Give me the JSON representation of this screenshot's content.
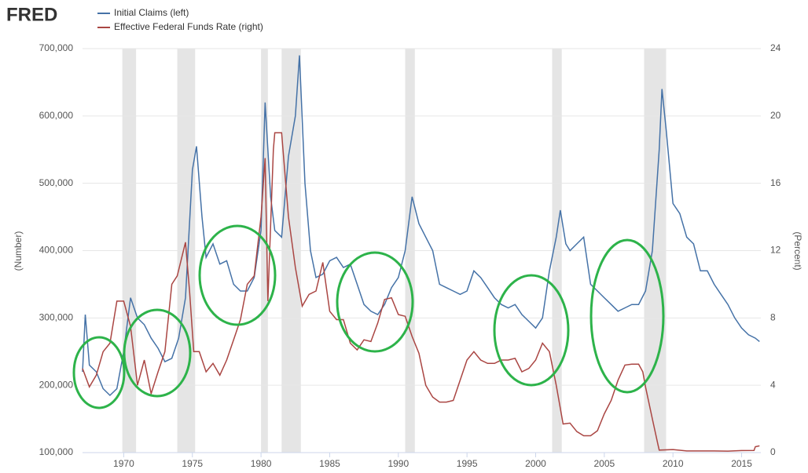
{
  "chart_data": {
    "type": "line",
    "logo": "FRED",
    "ylabel": "(Number)",
    "y2label": "(Percent)",
    "xlim": [
      1967,
      2016.4
    ],
    "xticks": [
      1970,
      1975,
      1980,
      1985,
      1990,
      1995,
      2000,
      2005,
      2010,
      2015
    ],
    "ylim": [
      100000,
      700000
    ],
    "yticks": [
      {
        "value": 100000,
        "label": "100,000"
      },
      {
        "value": 200000,
        "label": "200,000"
      },
      {
        "value": 300000,
        "label": "300,000"
      },
      {
        "value": 400000,
        "label": "400,000"
      },
      {
        "value": 500000,
        "label": "500,000"
      },
      {
        "value": 600000,
        "label": "600,000"
      },
      {
        "value": 700000,
        "label": "700,000"
      }
    ],
    "y2lim": [
      0,
      24
    ],
    "y2ticks": [
      0,
      4,
      8,
      12,
      16,
      20,
      24
    ],
    "grid": true,
    "recessions": [
      [
        1969.9,
        1970.9
      ],
      [
        1973.9,
        1975.2
      ],
      [
        1980.0,
        1980.5
      ],
      [
        1981.5,
        1982.9
      ],
      [
        1990.5,
        1991.2
      ],
      [
        2001.2,
        2001.9
      ],
      [
        2007.9,
        2009.5
      ]
    ],
    "series": [
      {
        "name": "Initial Claims (left)",
        "color": "#4572a7",
        "x": [
          1967.0,
          1967.2,
          1967.5,
          1968.0,
          1968.5,
          1969.0,
          1969.5,
          1970.0,
          1970.5,
          1971.0,
          1971.5,
          1972.0,
          1972.5,
          1973.0,
          1973.5,
          1974.0,
          1974.5,
          1975.0,
          1975.3,
          1975.7,
          1976.0,
          1976.5,
          1977.0,
          1977.5,
          1978.0,
          1978.5,
          1979.0,
          1979.5,
          1980.0,
          1980.3,
          1980.7,
          1981.0,
          1981.5,
          1982.0,
          1982.5,
          1982.8,
          1983.2,
          1983.6,
          1984.0,
          1984.5,
          1985.0,
          1985.5,
          1986.0,
          1986.5,
          1987.0,
          1987.5,
          1988.0,
          1988.5,
          1989.0,
          1989.5,
          1990.0,
          1990.5,
          1991.0,
          1991.5,
          1992.0,
          1992.5,
          1993.0,
          1993.5,
          1994.0,
          1994.5,
          1995.0,
          1995.5,
          1996.0,
          1996.5,
          1997.0,
          1997.5,
          1998.0,
          1998.5,
          1999.0,
          1999.5,
          2000.0,
          2000.5,
          2001.0,
          2001.5,
          2001.8,
          2002.2,
          2002.5,
          2003.0,
          2003.5,
          2004.0,
          2004.5,
          2005.0,
          2005.5,
          2006.0,
          2006.5,
          2007.0,
          2007.5,
          2008.0,
          2008.5,
          2009.0,
          2009.2,
          2009.5,
          2010.0,
          2010.5,
          2011.0,
          2011.5,
          2012.0,
          2012.5,
          2013.0,
          2013.5,
          2014.0,
          2014.5,
          2015.0,
          2015.5,
          2016.0,
          2016.3
        ],
        "values": [
          220000,
          305000,
          230000,
          220000,
          195000,
          185000,
          195000,
          250000,
          330000,
          300000,
          290000,
          270000,
          255000,
          235000,
          240000,
          270000,
          330000,
          520000,
          555000,
          450000,
          390000,
          410000,
          380000,
          385000,
          350000,
          340000,
          340000,
          360000,
          430000,
          620000,
          480000,
          430000,
          420000,
          540000,
          600000,
          690000,
          500000,
          400000,
          360000,
          365000,
          385000,
          390000,
          375000,
          380000,
          350000,
          320000,
          310000,
          305000,
          320000,
          345000,
          360000,
          400000,
          480000,
          440000,
          420000,
          400000,
          350000,
          345000,
          340000,
          335000,
          340000,
          370000,
          360000,
          345000,
          330000,
          320000,
          315000,
          320000,
          305000,
          295000,
          285000,
          300000,
          370000,
          420000,
          460000,
          410000,
          400000,
          410000,
          420000,
          350000,
          340000,
          330000,
          320000,
          310000,
          315000,
          320000,
          320000,
          340000,
          400000,
          550000,
          640000,
          580000,
          470000,
          455000,
          420000,
          410000,
          370000,
          370000,
          350000,
          335000,
          320000,
          300000,
          285000,
          275000,
          270000,
          265000
        ]
      },
      {
        "name": "Effective Federal Funds Rate (right)",
        "color": "#aa4643",
        "axis": "y2",
        "x": [
          1967.0,
          1967.5,
          1968.0,
          1968.5,
          1969.0,
          1969.5,
          1970.0,
          1970.5,
          1971.0,
          1971.5,
          1972.0,
          1972.5,
          1973.0,
          1973.5,
          1973.9,
          1974.5,
          1974.8,
          1975.1,
          1975.5,
          1976.0,
          1976.5,
          1977.0,
          1977.5,
          1978.0,
          1978.5,
          1979.0,
          1979.5,
          1980.0,
          1980.3,
          1980.5,
          1980.9,
          1981.0,
          1981.5,
          1982.0,
          1982.5,
          1983.0,
          1983.5,
          1984.0,
          1984.5,
          1985.0,
          1985.5,
          1986.0,
          1986.5,
          1987.0,
          1987.5,
          1988.0,
          1988.5,
          1989.0,
          1989.5,
          1990.0,
          1990.5,
          1991.0,
          1991.5,
          1992.0,
          1992.5,
          1993.0,
          1993.5,
          1994.0,
          1994.5,
          1995.0,
          1995.5,
          1996.0,
          1996.5,
          1997.0,
          1997.5,
          1998.0,
          1998.5,
          1999.0,
          1999.5,
          2000.0,
          2000.5,
          2001.0,
          2001.5,
          2002.0,
          2002.5,
          2003.0,
          2003.5,
          2004.0,
          2004.5,
          2005.0,
          2005.5,
          2006.0,
          2006.5,
          2007.0,
          2007.5,
          2007.8,
          2008.0,
          2008.5,
          2008.9,
          2009.0,
          2010.0,
          2011.0,
          2012.0,
          2013.0,
          2014.0,
          2015.0,
          2015.9,
          2016.0,
          2016.3
        ],
        "values": [
          5.0,
          3.9,
          4.6,
          6.0,
          6.5,
          9.0,
          9.0,
          7.5,
          4.0,
          5.5,
          3.5,
          4.8,
          6.0,
          10.0,
          10.5,
          12.5,
          9.5,
          6.0,
          6.0,
          4.8,
          5.3,
          4.6,
          5.5,
          6.7,
          7.9,
          10.0,
          10.5,
          14.0,
          17.5,
          9.0,
          18.0,
          19.0,
          19.0,
          14.0,
          11.0,
          8.7,
          9.4,
          9.6,
          11.3,
          8.4,
          7.9,
          7.9,
          6.5,
          6.1,
          6.7,
          6.6,
          7.7,
          9.1,
          9.2,
          8.2,
          8.1,
          6.9,
          5.9,
          4.0,
          3.3,
          3.0,
          3.0,
          3.1,
          4.3,
          5.5,
          6.0,
          5.5,
          5.3,
          5.3,
          5.5,
          5.5,
          5.6,
          4.8,
          5.0,
          5.5,
          6.5,
          6.0,
          4.0,
          1.7,
          1.75,
          1.25,
          1.0,
          1.0,
          1.3,
          2.3,
          3.1,
          4.3,
          5.2,
          5.25,
          5.25,
          4.8,
          3.9,
          2.0,
          0.5,
          0.15,
          0.18,
          0.1,
          0.1,
          0.1,
          0.09,
          0.12,
          0.13,
          0.35,
          0.4
        ]
      }
    ]
  }
}
